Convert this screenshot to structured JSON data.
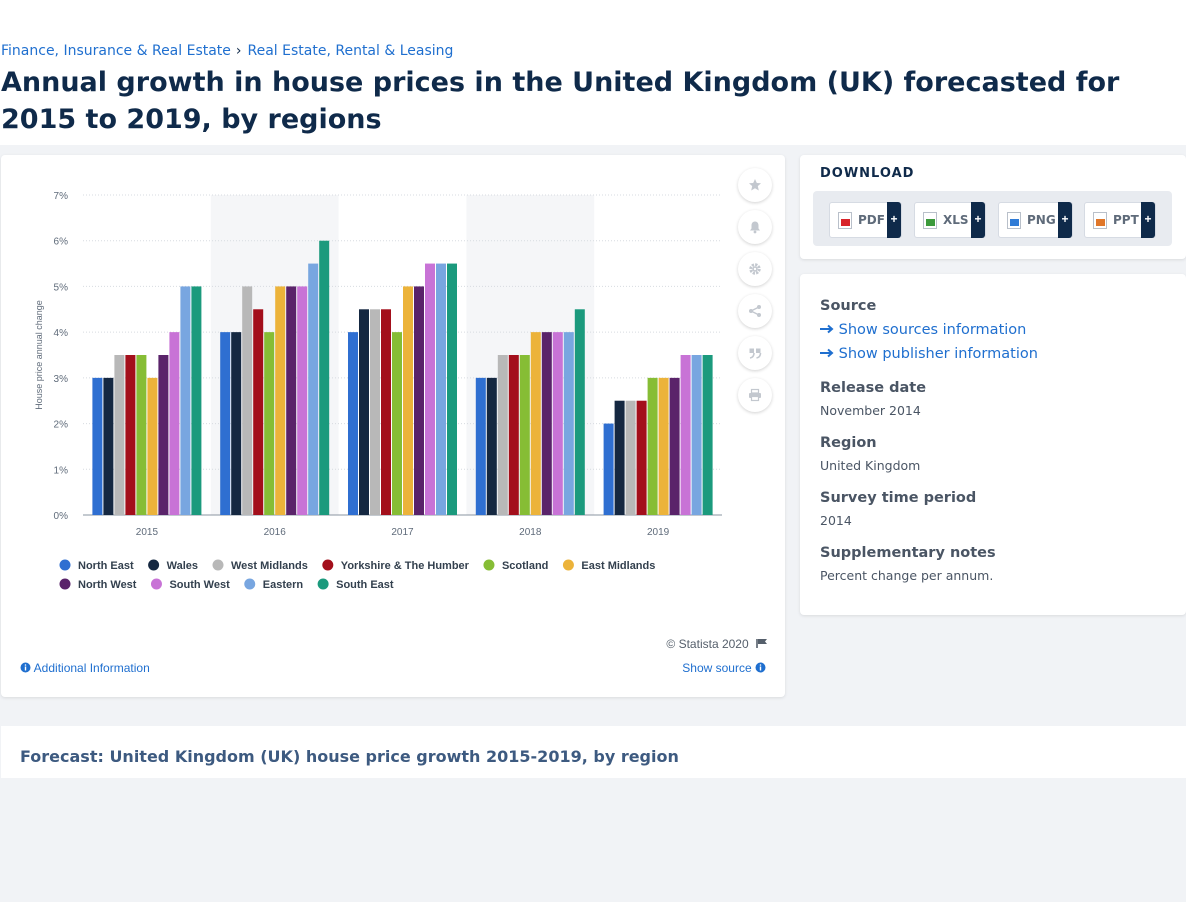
{
  "breadcrumb": {
    "items": [
      "Finance, Insurance & Real Estate",
      "Real Estate, Rental & Leasing"
    ],
    "separator": "›"
  },
  "page_title": "Annual growth in house prices in the United Kingdom (UK) forecasted for 2015 to 2019, by regions",
  "chart_footer": {
    "copyright": "© Statista 2020",
    "additional_info": "Additional Information",
    "show_source": "Show source"
  },
  "download": {
    "title": "DOWNLOAD",
    "buttons": [
      {
        "label": "PDF",
        "icon": "pdf-file-icon",
        "color": "#d8232a"
      },
      {
        "label": "XLS",
        "icon": "xls-file-icon",
        "color": "#3c9a3c"
      },
      {
        "label": "PNG",
        "icon": "png-file-icon",
        "color": "#2f7bd6"
      },
      {
        "label": "PPT",
        "icon": "ppt-file-icon",
        "color": "#e0772a"
      }
    ],
    "plus": "+"
  },
  "info": {
    "source_title": "Source",
    "show_sources": "Show sources information",
    "show_publisher": "Show publisher information",
    "release_title": "Release date",
    "release_value": "November 2014",
    "region_title": "Region",
    "region_value": "United Kingdom",
    "survey_title": "Survey time period",
    "survey_value": "2014",
    "notes_title": "Supplementary notes",
    "notes_value": "Percent change per annum."
  },
  "tools": [
    "star-icon",
    "bell-icon",
    "gear-icon",
    "share-icon",
    "quote-icon",
    "print-icon"
  ],
  "bottom_heading": "Forecast: United Kingdom (UK) house price growth 2015-2019, by region",
  "chart_data": {
    "type": "bar",
    "ylabel": "House price annual change",
    "ylim": [
      0,
      7
    ],
    "yticks": [
      "0%",
      "1%",
      "2%",
      "3%",
      "4%",
      "5%",
      "6%",
      "7%"
    ],
    "categories": [
      "2015",
      "2016",
      "2017",
      "2018",
      "2019"
    ],
    "grid": true,
    "legend": "bottom",
    "series": [
      {
        "name": "North East",
        "color": "#2f6fd1",
        "values": [
          3,
          4,
          4,
          3,
          2
        ]
      },
      {
        "name": "Wales",
        "color": "#152841",
        "values": [
          3,
          4,
          4.5,
          3,
          2.5
        ]
      },
      {
        "name": "West Midlands",
        "color": "#b8b8b8",
        "values": [
          3.5,
          5,
          4.5,
          3.5,
          2.5
        ]
      },
      {
        "name": "Yorkshire & The Humber",
        "color": "#a30f1b",
        "values": [
          3.5,
          4.5,
          4.5,
          3.5,
          2.5
        ]
      },
      {
        "name": "Scotland",
        "color": "#86bd35",
        "values": [
          3.5,
          4,
          4,
          3.5,
          3
        ]
      },
      {
        "name": "East Midlands",
        "color": "#ecb33a",
        "values": [
          3,
          5,
          5,
          4,
          3
        ]
      },
      {
        "name": "North West",
        "color": "#5a236a",
        "values": [
          3.5,
          5,
          5,
          4,
          3
        ]
      },
      {
        "name": "South West",
        "color": "#c873d6",
        "values": [
          4,
          5,
          5.5,
          4,
          3.5
        ]
      },
      {
        "name": "Eastern",
        "color": "#78a6e0",
        "values": [
          5,
          5.5,
          5.5,
          4,
          3.5
        ]
      },
      {
        "name": "South East",
        "color": "#1b9a7d",
        "values": [
          5,
          6,
          5.5,
          4.5,
          3.5
        ]
      }
    ]
  }
}
